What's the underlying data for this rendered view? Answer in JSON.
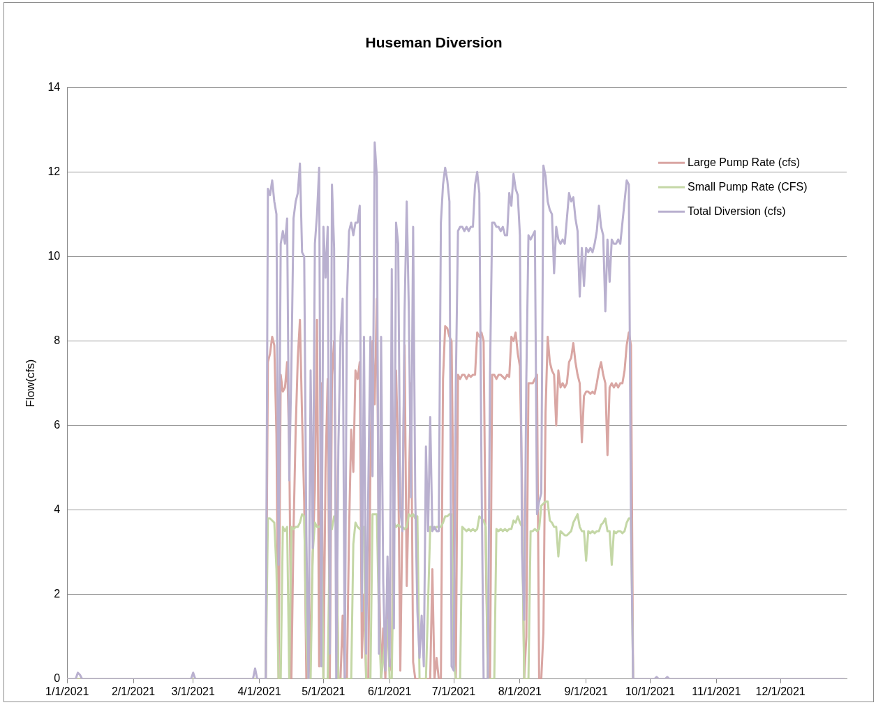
{
  "chart_data": {
    "type": "line",
    "title": "Huseman Diversion",
    "ylabel": "Flow(cfs)",
    "xlim": [
      "2021-01-01",
      "2022-01-01"
    ],
    "xticks": [
      {
        "value": "2021-01-01",
        "label": "1/1/2021"
      },
      {
        "value": "2021-02-01",
        "label": "2/1/2021"
      },
      {
        "value": "2021-03-01",
        "label": "3/1/2021"
      },
      {
        "value": "2021-04-01",
        "label": "4/1/2021"
      },
      {
        "value": "2021-05-01",
        "label": "5/1/2021"
      },
      {
        "value": "2021-06-01",
        "label": "6/1/2021"
      },
      {
        "value": "2021-07-01",
        "label": "7/1/2021"
      },
      {
        "value": "2021-08-01",
        "label": "8/1/2021"
      },
      {
        "value": "2021-09-01",
        "label": "9/1/2021"
      },
      {
        "value": "2021-10-01",
        "label": "10/1/2021"
      },
      {
        "value": "2021-11-01",
        "label": "11/1/2021"
      },
      {
        "value": "2021-12-01",
        "label": "12/1/2021"
      }
    ],
    "ylim": [
      0,
      14
    ],
    "yticks": [
      0,
      2,
      4,
      6,
      8,
      10,
      12,
      14
    ],
    "grid": "y",
    "legend": "right",
    "marker": "none",
    "line_style": "solid",
    "series": [
      {
        "name": "Large Pump Rate (cfs)",
        "color": "#d9a6a3",
        "x": [
          "2021-01-01",
          "2021-04-04",
          "2021-04-05",
          "2021-04-06",
          "2021-04-07",
          "2021-04-08",
          "2021-04-09",
          "2021-04-10",
          "2021-04-11",
          "2021-04-12",
          "2021-04-13",
          "2021-04-14",
          "2021-04-15",
          "2021-04-16",
          "2021-04-17",
          "2021-04-18",
          "2021-04-19",
          "2021-04-20",
          "2021-04-21",
          "2021-04-22",
          "2021-04-23",
          "2021-04-24",
          "2021-04-25",
          "2021-04-26",
          "2021-04-27",
          "2021-04-28",
          "2021-04-29",
          "2021-04-30",
          "2021-05-01",
          "2021-05-02",
          "2021-05-03",
          "2021-05-04",
          "2021-05-05",
          "2021-05-06",
          "2021-05-07",
          "2021-05-08",
          "2021-05-09",
          "2021-05-10",
          "2021-05-11",
          "2021-05-12",
          "2021-05-13",
          "2021-05-14",
          "2021-05-15",
          "2021-05-16",
          "2021-05-17",
          "2021-05-18",
          "2021-05-19",
          "2021-05-20",
          "2021-05-21",
          "2021-05-22",
          "2021-05-23",
          "2021-05-24",
          "2021-05-25",
          "2021-05-26",
          "2021-05-27",
          "2021-05-28",
          "2021-05-29",
          "2021-05-30",
          "2021-05-31",
          "2021-06-01",
          "2021-06-02",
          "2021-06-03",
          "2021-06-04",
          "2021-06-05",
          "2021-06-06",
          "2021-06-07",
          "2021-06-08",
          "2021-06-09",
          "2021-06-10",
          "2021-06-11",
          "2021-06-12",
          "2021-06-13",
          "2021-06-14",
          "2021-06-20",
          "2021-06-21",
          "2021-06-22",
          "2021-06-23",
          "2021-06-24",
          "2021-06-25",
          "2021-06-26",
          "2021-06-27",
          "2021-06-28",
          "2021-06-29",
          "2021-06-30",
          "2021-07-01",
          "2021-07-02",
          "2021-07-03",
          "2021-07-04",
          "2021-07-05",
          "2021-07-06",
          "2021-07-07",
          "2021-07-08",
          "2021-07-09",
          "2021-07-10",
          "2021-07-11",
          "2021-07-12",
          "2021-07-13",
          "2021-07-14",
          "2021-07-15",
          "2021-07-16",
          "2021-07-17",
          "2021-07-18",
          "2021-07-19",
          "2021-07-20",
          "2021-07-21",
          "2021-07-22",
          "2021-07-23",
          "2021-07-24",
          "2021-07-25",
          "2021-07-26",
          "2021-07-27",
          "2021-07-28",
          "2021-07-29",
          "2021-07-30",
          "2021-07-31",
          "2021-08-01",
          "2021-08-02",
          "2021-08-03",
          "2021-08-04",
          "2021-08-05",
          "2021-08-06",
          "2021-08-07",
          "2021-08-08",
          "2021-08-09",
          "2021-08-10",
          "2021-08-11",
          "2021-08-12",
          "2021-08-13",
          "2021-08-14",
          "2021-08-15",
          "2021-08-16",
          "2021-08-17",
          "2021-08-18",
          "2021-08-19",
          "2021-08-20",
          "2021-08-21",
          "2021-08-22",
          "2021-08-23",
          "2021-08-24",
          "2021-08-25",
          "2021-08-26",
          "2021-08-27",
          "2021-08-28",
          "2021-08-29",
          "2021-08-30",
          "2021-08-31",
          "2021-09-01",
          "2021-09-02",
          "2021-09-03",
          "2021-09-04",
          "2021-09-05",
          "2021-09-06",
          "2021-09-07",
          "2021-09-08",
          "2021-09-09",
          "2021-09-10",
          "2021-09-11",
          "2021-09-12",
          "2021-09-13",
          "2021-09-14",
          "2021-09-15",
          "2021-09-16",
          "2021-09-17",
          "2021-09-18",
          "2021-09-19",
          "2021-09-20",
          "2021-09-21",
          "2021-09-22",
          "2021-09-23",
          "2021-12-31"
        ],
        "values": [
          0,
          0,
          7.5,
          7.7,
          8.1,
          7.9,
          5.8,
          0,
          7.2,
          6.8,
          6.9,
          7.5,
          5.5,
          0,
          3.5,
          5.9,
          7.6,
          8.5,
          6.2,
          4.2,
          0,
          0,
          1.2,
          3.0,
          4.5,
          8.5,
          0.3,
          7.0,
          0,
          5.0,
          7.1,
          0,
          7.2,
          8.0,
          3.7,
          0,
          0,
          1.5,
          0,
          0,
          3.5,
          5.9,
          4.9,
          7.3,
          7.1,
          7.5,
          0.5,
          2.0,
          0,
          0,
          5.0,
          8.0,
          6.5,
          9.0,
          2.7,
          0,
          1.2,
          0,
          2.0,
          0.2,
          0.5,
          5.0,
          7.3,
          5.2,
          0.2,
          4.0,
          7.9,
          2.2,
          4.5,
          7.0,
          0.4,
          0,
          0,
          0,
          2.6,
          0,
          0.5,
          0,
          0,
          7.1,
          8.35,
          8.3,
          8.1,
          8.0,
          3.5,
          0,
          7.2,
          7.1,
          7.2,
          7.2,
          7.1,
          7.2,
          7.15,
          7.2,
          7.2,
          8.2,
          8.1,
          8.2,
          8.0,
          3.0,
          0,
          0,
          7.2,
          7.2,
          7.1,
          7.2,
          7.2,
          7.15,
          7.1,
          7.2,
          7.15,
          8.1,
          8.0,
          8.2,
          7.7,
          7.4,
          4.6,
          0,
          1.0,
          7.0,
          7.0,
          7.0,
          7.1,
          7.2,
          0,
          0,
          1.1,
          6.3,
          8.1,
          7.5,
          7.3,
          7.2,
          6.0,
          7.3,
          6.9,
          7.0,
          6.9,
          7.0,
          7.5,
          7.6,
          7.95,
          7.5,
          7.2,
          7.0,
          5.6,
          6.7,
          6.8,
          6.8,
          6.75,
          6.8,
          6.75,
          7.0,
          7.3,
          7.5,
          7.2,
          7.0,
          5.3,
          6.9,
          7.0,
          6.9,
          7.0,
          6.9,
          7.0,
          7.0,
          7.3,
          7.9,
          8.2,
          7.9,
          0,
          0
        ]
      },
      {
        "name": "Small Pump Rate (CFS)",
        "color": "#c4d7a6",
        "x": [
          "2021-01-01",
          "2021-04-04",
          "2021-04-05",
          "2021-04-06",
          "2021-04-07",
          "2021-04-08",
          "2021-04-09",
          "2021-04-10",
          "2021-04-11",
          "2021-04-12",
          "2021-04-13",
          "2021-04-14",
          "2021-04-15",
          "2021-04-16",
          "2021-04-17",
          "2021-04-18",
          "2021-04-19",
          "2021-04-20",
          "2021-04-21",
          "2021-04-22",
          "2021-04-23",
          "2021-04-24",
          "2021-04-25",
          "2021-04-26",
          "2021-04-27",
          "2021-04-28",
          "2021-04-29",
          "2021-04-30",
          "2021-05-01",
          "2021-05-02",
          "2021-05-03",
          "2021-05-04",
          "2021-05-05",
          "2021-05-06",
          "2021-05-07",
          "2021-05-08",
          "2021-05-09",
          "2021-05-14",
          "2021-05-15",
          "2021-05-16",
          "2021-05-17",
          "2021-05-18",
          "2021-05-19",
          "2021-05-20",
          "2021-05-21",
          "2021-05-23",
          "2021-05-24",
          "2021-05-25",
          "2021-05-26",
          "2021-05-27",
          "2021-05-28",
          "2021-05-31",
          "2021-06-01",
          "2021-06-02",
          "2021-06-03",
          "2021-06-04",
          "2021-06-05",
          "2021-06-06",
          "2021-06-07",
          "2021-06-08",
          "2021-06-09",
          "2021-06-10",
          "2021-06-11",
          "2021-06-12",
          "2021-06-13",
          "2021-06-14",
          "2021-06-15",
          "2021-06-18",
          "2021-06-19",
          "2021-06-20",
          "2021-06-21",
          "2021-06-22",
          "2021-06-23",
          "2021-06-24",
          "2021-06-25",
          "2021-06-26",
          "2021-06-27",
          "2021-06-28",
          "2021-06-29",
          "2021-06-30",
          "2021-07-01",
          "2021-07-02",
          "2021-07-04",
          "2021-07-05",
          "2021-07-06",
          "2021-07-07",
          "2021-07-08",
          "2021-07-09",
          "2021-07-10",
          "2021-07-11",
          "2021-07-12",
          "2021-07-13",
          "2021-07-14",
          "2021-07-15",
          "2021-07-16",
          "2021-07-17",
          "2021-07-20",
          "2021-07-21",
          "2021-07-22",
          "2021-07-23",
          "2021-07-24",
          "2021-07-25",
          "2021-07-26",
          "2021-07-27",
          "2021-07-28",
          "2021-07-29",
          "2021-07-30",
          "2021-07-31",
          "2021-08-01",
          "2021-08-02",
          "2021-08-03",
          "2021-08-05",
          "2021-08-06",
          "2021-08-07",
          "2021-08-08",
          "2021-08-09",
          "2021-08-10",
          "2021-08-11",
          "2021-08-12",
          "2021-08-13",
          "2021-08-14",
          "2021-08-15",
          "2021-08-16",
          "2021-08-17",
          "2021-08-18",
          "2021-08-19",
          "2021-08-20",
          "2021-08-21",
          "2021-08-22",
          "2021-08-23",
          "2021-08-24",
          "2021-08-25",
          "2021-08-26",
          "2021-08-27",
          "2021-08-28",
          "2021-08-29",
          "2021-08-30",
          "2021-08-31",
          "2021-09-01",
          "2021-09-02",
          "2021-09-03",
          "2021-09-04",
          "2021-09-05",
          "2021-09-06",
          "2021-09-07",
          "2021-09-08",
          "2021-09-09",
          "2021-09-10",
          "2021-09-11",
          "2021-09-12",
          "2021-09-13",
          "2021-09-14",
          "2021-09-15",
          "2021-09-16",
          "2021-09-17",
          "2021-09-18",
          "2021-09-19",
          "2021-09-20",
          "2021-09-21",
          "2021-09-22",
          "2021-09-23",
          "2021-12-31"
        ],
        "values": [
          0,
          0,
          3.8,
          3.8,
          3.75,
          3.7,
          2.6,
          0,
          0,
          3.6,
          3.5,
          3.6,
          0,
          3.6,
          3.55,
          3.6,
          3.6,
          3.7,
          3.9,
          3.85,
          1.0,
          0,
          0,
          3.0,
          3.7,
          3.6,
          3.6,
          3.65,
          0,
          0,
          0,
          3.6,
          3.55,
          3.85,
          3.7,
          0,
          0,
          0,
          3.2,
          3.7,
          3.6,
          3.55,
          3.6,
          3.6,
          0,
          0,
          3.9,
          3.9,
          3.9,
          1.4,
          0,
          1.4,
          0,
          0,
          3.7,
          3.6,
          3.65,
          3.6,
          3.6,
          3.55,
          3.6,
          3.9,
          3.85,
          3.9,
          3.8,
          3.85,
          0,
          0,
          1.8,
          3.6,
          3.6,
          3.55,
          3.6,
          3.6,
          3.6,
          3.7,
          3.85,
          3.85,
          3.9,
          3.9,
          0.4,
          0,
          0,
          3.6,
          3.55,
          3.5,
          3.55,
          3.5,
          3.55,
          3.5,
          3.55,
          3.85,
          3.8,
          3.75,
          3.6,
          0,
          0,
          3.55,
          3.5,
          3.55,
          3.5,
          3.55,
          3.5,
          3.55,
          3.55,
          3.75,
          3.7,
          3.85,
          3.7,
          3.6,
          0,
          0,
          3.5,
          3.5,
          3.55,
          3.5,
          3.55,
          4.1,
          4.15,
          4.2,
          4.2,
          3.75,
          3.7,
          3.6,
          3.6,
          2.9,
          3.5,
          3.45,
          3.4,
          3.4,
          3.45,
          3.5,
          3.7,
          3.8,
          3.9,
          3.6,
          3.5,
          3.5,
          2.8,
          3.5,
          3.45,
          3.5,
          3.45,
          3.5,
          3.5,
          3.65,
          3.7,
          3.8,
          3.5,
          3.5,
          2.7,
          3.5,
          3.45,
          3.5,
          3.5,
          3.45,
          3.5,
          3.7,
          3.8,
          3.8,
          0,
          0
        ]
      },
      {
        "name": "Total Diversion (cfs)",
        "color": "#b9b0cf",
        "x": [
          "2021-01-01",
          "2021-01-05",
          "2021-01-06",
          "2021-01-07",
          "2021-01-08",
          "2021-02-28",
          "2021-03-01",
          "2021-03-02",
          "2021-03-29",
          "2021-03-30",
          "2021-03-31",
          "2021-04-04",
          "2021-04-05",
          "2021-04-06",
          "2021-04-07",
          "2021-04-08",
          "2021-04-09",
          "2021-04-10",
          "2021-04-11",
          "2021-04-12",
          "2021-04-13",
          "2021-04-14",
          "2021-04-15",
          "2021-04-16",
          "2021-04-17",
          "2021-04-18",
          "2021-04-19",
          "2021-04-20",
          "2021-04-21",
          "2021-04-22",
          "2021-04-23",
          "2021-04-24",
          "2021-04-25",
          "2021-04-26",
          "2021-04-27",
          "2021-04-28",
          "2021-04-29",
          "2021-04-30",
          "2021-05-01",
          "2021-05-02",
          "2021-05-03",
          "2021-05-04",
          "2021-05-05",
          "2021-05-06",
          "2021-05-07",
          "2021-05-08",
          "2021-05-09",
          "2021-05-10",
          "2021-05-11",
          "2021-05-12",
          "2021-05-13",
          "2021-05-14",
          "2021-05-15",
          "2021-05-16",
          "2021-05-17",
          "2021-05-18",
          "2021-05-19",
          "2021-05-20",
          "2021-05-21",
          "2021-05-22",
          "2021-05-23",
          "2021-05-24",
          "2021-05-25",
          "2021-05-26",
          "2021-05-27",
          "2021-05-28",
          "2021-05-29",
          "2021-05-30",
          "2021-05-31",
          "2021-06-01",
          "2021-06-02",
          "2021-06-03",
          "2021-06-04",
          "2021-06-05",
          "2021-06-06",
          "2021-06-07",
          "2021-06-08",
          "2021-06-09",
          "2021-06-10",
          "2021-06-11",
          "2021-06-12",
          "2021-06-13",
          "2021-06-14",
          "2021-06-15",
          "2021-06-16",
          "2021-06-17",
          "2021-06-18",
          "2021-06-19",
          "2021-06-20",
          "2021-06-21",
          "2021-06-22",
          "2021-06-23",
          "2021-06-24",
          "2021-06-25",
          "2021-06-26",
          "2021-06-27",
          "2021-06-28",
          "2021-06-29",
          "2021-06-30",
          "2021-07-01",
          "2021-07-02",
          "2021-07-03",
          "2021-07-04",
          "2021-07-05",
          "2021-07-06",
          "2021-07-07",
          "2021-07-08",
          "2021-07-09",
          "2021-07-10",
          "2021-07-11",
          "2021-07-12",
          "2021-07-13",
          "2021-07-14",
          "2021-07-15",
          "2021-07-16",
          "2021-07-17",
          "2021-07-18",
          "2021-07-19",
          "2021-07-20",
          "2021-07-21",
          "2021-07-22",
          "2021-07-23",
          "2021-07-24",
          "2021-07-25",
          "2021-07-26",
          "2021-07-27",
          "2021-07-28",
          "2021-07-29",
          "2021-07-30",
          "2021-07-31",
          "2021-08-01",
          "2021-08-02",
          "2021-08-03",
          "2021-08-04",
          "2021-08-05",
          "2021-08-06",
          "2021-08-07",
          "2021-08-08",
          "2021-08-09",
          "2021-08-10",
          "2021-08-11",
          "2021-08-12",
          "2021-08-13",
          "2021-08-14",
          "2021-08-15",
          "2021-08-16",
          "2021-08-17",
          "2021-08-18",
          "2021-08-19",
          "2021-08-20",
          "2021-08-21",
          "2021-08-22",
          "2021-08-23",
          "2021-08-24",
          "2021-08-25",
          "2021-08-26",
          "2021-08-27",
          "2021-08-28",
          "2021-08-29",
          "2021-08-30",
          "2021-08-31",
          "2021-09-01",
          "2021-09-02",
          "2021-09-03",
          "2021-09-04",
          "2021-09-05",
          "2021-09-06",
          "2021-09-07",
          "2021-09-08",
          "2021-09-09",
          "2021-09-10",
          "2021-09-11",
          "2021-09-12",
          "2021-09-13",
          "2021-09-14",
          "2021-09-15",
          "2021-09-16",
          "2021-09-17",
          "2021-09-18",
          "2021-09-19",
          "2021-09-20",
          "2021-09-21",
          "2021-09-22",
          "2021-09-23",
          "2021-09-24",
          "2021-10-03",
          "2021-10-04",
          "2021-10-05",
          "2021-10-08",
          "2021-10-09",
          "2021-10-10",
          "2021-12-31"
        ],
        "values": [
          0,
          0,
          0.15,
          0.1,
          0,
          0,
          0.15,
          0,
          0,
          0.25,
          0,
          0,
          11.6,
          11.45,
          11.8,
          11.3,
          11.0,
          2.7,
          10.3,
          10.6,
          10.3,
          10.9,
          4.7,
          7.4,
          10.9,
          11.3,
          11.5,
          12.2,
          10.1,
          10.0,
          3.4,
          0,
          7.3,
          3.1,
          10.3,
          11.0,
          12.1,
          0.3,
          10.7,
          9.5,
          10.7,
          0.6,
          11.7,
          10.2,
          0,
          5.5,
          8.1,
          9.0,
          0,
          9.0,
          10.6,
          10.8,
          10.5,
          10.8,
          10.8,
          11.2,
          1.6,
          8.1,
          0.6,
          4.5,
          8.1,
          4.8,
          12.7,
          11.9,
          0.6,
          8.1,
          2.3,
          0.2,
          2.9,
          0.3,
          9.7,
          1.2,
          10.8,
          10.3,
          4.0,
          3.5,
          8.7,
          11.3,
          8.7,
          4.3,
          10.7,
          4.3,
          1.6,
          0.5,
          1.5,
          0.3,
          5.5,
          3.5,
          6.2,
          3.5,
          3.6,
          3.5,
          3.5,
          10.8,
          11.7,
          12.1,
          11.8,
          11.3,
          0.3,
          0.2,
          7.0,
          10.6,
          10.7,
          10.7,
          10.6,
          10.7,
          10.6,
          10.7,
          10.7,
          11.7,
          12.0,
          11.5,
          5.0,
          0,
          0,
          0,
          7.2,
          10.8,
          10.8,
          10.7,
          10.7,
          10.6,
          10.7,
          10.5,
          10.5,
          11.5,
          11.2,
          11.95,
          11.6,
          11.45,
          10.5,
          3.0,
          1.4,
          7.1,
          10.5,
          10.4,
          10.5,
          10.6,
          3.9,
          4.2,
          4.4,
          12.15,
          11.9,
          11.3,
          11.1,
          11.0,
          9.6,
          10.7,
          10.4,
          10.3,
          10.4,
          10.3,
          10.9,
          11.5,
          11.3,
          11.4,
          10.9,
          10.6,
          9.05,
          10.2,
          9.3,
          10.2,
          10.1,
          10.2,
          10.1,
          10.3,
          10.6,
          11.2,
          10.7,
          10.5,
          8.7,
          10.4,
          9.4,
          10.4,
          10.3,
          10.3,
          10.4,
          10.3,
          10.8,
          11.3,
          11.8,
          11.7,
          3.7,
          0,
          0,
          0,
          0.05,
          0,
          0,
          0.05,
          0,
          0
        ]
      }
    ]
  }
}
